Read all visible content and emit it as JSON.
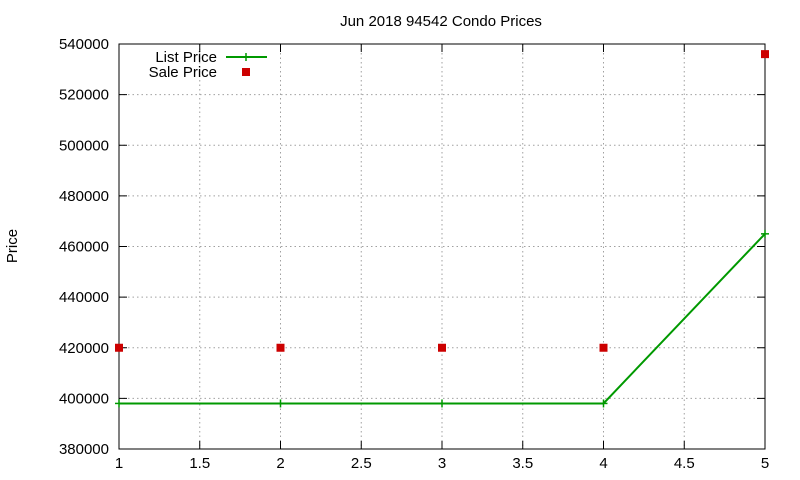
{
  "chart_data": {
    "type": "line",
    "title": "Jun 2018 94542 Condo Prices",
    "xlabel": "",
    "ylabel": "Price",
    "xlim": [
      1,
      5
    ],
    "ylim": [
      380000,
      540000
    ],
    "x_ticks": [
      1,
      1.5,
      2,
      2.5,
      3,
      3.5,
      4,
      4.5,
      5
    ],
    "x_tick_labels": [
      "1",
      "1.5",
      "2",
      "2.5",
      "3",
      "3.5",
      "4",
      "4.5",
      "5"
    ],
    "y_ticks": [
      380000,
      400000,
      420000,
      440000,
      460000,
      480000,
      500000,
      520000,
      540000
    ],
    "y_tick_labels": [
      "380000",
      "400000",
      "420000",
      "440000",
      "460000",
      "480000",
      "500000",
      "520000",
      "540000"
    ],
    "grid": true,
    "legend_position": "top-left",
    "series": [
      {
        "name": "List Price",
        "style": "linespoints",
        "marker": "plus",
        "color": "#009900",
        "x": [
          1,
          2,
          3,
          4,
          5
        ],
        "y": [
          398000,
          398000,
          398000,
          398000,
          465000
        ]
      },
      {
        "name": "Sale Price",
        "style": "points",
        "marker": "square",
        "color": "#cc0000",
        "x": [
          1,
          2,
          3,
          4,
          5
        ],
        "y": [
          420000,
          420000,
          420000,
          420000,
          536000
        ]
      }
    ]
  }
}
